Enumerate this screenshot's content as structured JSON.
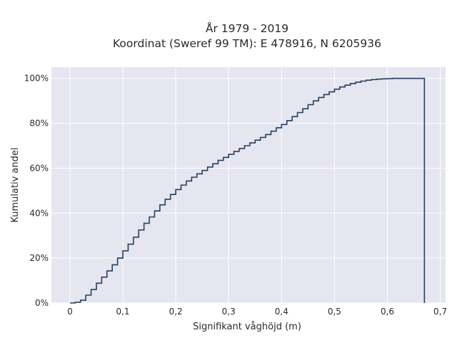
{
  "chart_data": {
    "type": "line",
    "step": true,
    "title": [
      "År 1979 - 2019",
      "Koordinat (Sweref 99 TM): E 478916, N 6205936"
    ],
    "xlabel": "Signifikant våghöjd (m)",
    "ylabel": "Kumulativ andel",
    "xlim": [
      -0.035,
      0.71
    ],
    "ylim": [
      0,
      1.05
    ],
    "xticks": [
      0,
      0.1,
      0.2,
      0.3,
      0.4,
      0.5,
      0.6,
      0.7
    ],
    "xtick_labels": [
      "0",
      "0,1",
      "0,2",
      "0,3",
      "0,4",
      "0,5",
      "0,6",
      "0,7"
    ],
    "yticks": [
      0,
      0.2,
      0.4,
      0.6,
      0.8,
      1.0
    ],
    "ytick_labels": [
      "0%",
      "20%",
      "40%",
      "60%",
      "80%",
      "100%"
    ],
    "grid": true,
    "colors": {
      "background": "#e5e6ef",
      "grid": "#ffffff",
      "line": "#2a3f5f"
    },
    "x": [
      0,
      0.01,
      0.02,
      0.03,
      0.04,
      0.05,
      0.06,
      0.07,
      0.08,
      0.09,
      0.1,
      0.11,
      0.12,
      0.13,
      0.14,
      0.15,
      0.16,
      0.17,
      0.18,
      0.19,
      0.2,
      0.21,
      0.22,
      0.23,
      0.24,
      0.25,
      0.26,
      0.27,
      0.28,
      0.29,
      0.3,
      0.31,
      0.32,
      0.33,
      0.34,
      0.35,
      0.36,
      0.37,
      0.38,
      0.39,
      0.4,
      0.41,
      0.42,
      0.43,
      0.44,
      0.45,
      0.46,
      0.47,
      0.48,
      0.49,
      0.5,
      0.51,
      0.52,
      0.53,
      0.54,
      0.55,
      0.56,
      0.57,
      0.58,
      0.59,
      0.6,
      0.61,
      0.62,
      0.63,
      0.64,
      0.65,
      0.66,
      0.67
    ],
    "y": [
      0.0,
      0.003,
      0.012,
      0.035,
      0.06,
      0.088,
      0.115,
      0.143,
      0.17,
      0.2,
      0.232,
      0.262,
      0.293,
      0.325,
      0.355,
      0.383,
      0.41,
      0.437,
      0.462,
      0.483,
      0.505,
      0.525,
      0.543,
      0.56,
      0.575,
      0.59,
      0.605,
      0.62,
      0.635,
      0.648,
      0.662,
      0.675,
      0.688,
      0.7,
      0.713,
      0.725,
      0.737,
      0.75,
      0.765,
      0.78,
      0.795,
      0.812,
      0.83,
      0.848,
      0.865,
      0.883,
      0.9,
      0.915,
      0.928,
      0.94,
      0.952,
      0.962,
      0.97,
      0.977,
      0.983,
      0.988,
      0.992,
      0.995,
      0.997,
      0.998,
      0.999,
      1.0,
      1.0,
      1.0,
      1.0,
      1.0,
      1.0,
      0.0
    ]
  }
}
